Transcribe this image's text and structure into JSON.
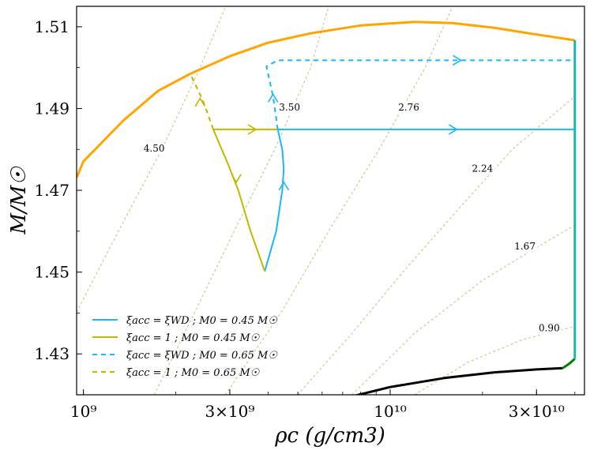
{
  "chart_data": {
    "type": "line",
    "xscale": "log",
    "xlim": [
      950000000,
      43000000000
    ],
    "ylim": [
      1.42,
      1.515
    ],
    "xlabel": "ρc (g/cm3)",
    "ylabel": "M/M☉",
    "x_ticks": [
      {
        "value": 1000000000,
        "label": "10⁹"
      },
      {
        "value": 3000000000,
        "label": "3×10⁹"
      },
      {
        "value": 10000000000,
        "label": "10¹⁰"
      },
      {
        "value": 30000000000,
        "label": "3×10¹⁰"
      }
    ],
    "y_ticks": [
      {
        "value": 1.43,
        "label": "1.43"
      },
      {
        "value": 1.45,
        "label": "1.45"
      },
      {
        "value": 1.47,
        "label": "1.47"
      },
      {
        "value": 1.49,
        "label": "1.49"
      },
      {
        "value": 1.51,
        "label": "1.51"
      }
    ],
    "series": [
      {
        "name": "upper boundary",
        "color": "#FFA500",
        "width": 3,
        "dash": "",
        "points": [
          [
            950000000,
            1.4731
          ],
          [
            1000000000,
            1.4771
          ],
          [
            1350000000,
            1.4871
          ],
          [
            1750000000,
            1.4943
          ],
          [
            2230000000,
            1.4985
          ],
          [
            3000000000,
            1.5028
          ],
          [
            4000000000,
            1.5061
          ],
          [
            5500000000,
            1.5084
          ],
          [
            8000000000,
            1.5103
          ],
          [
            12000000000,
            1.5112
          ],
          [
            16000000000,
            1.5109
          ],
          [
            22000000000,
            1.5097
          ],
          [
            30000000000,
            1.5081
          ],
          [
            40000000000,
            1.5067
          ]
        ]
      },
      {
        "name": "lower boundary",
        "color": "#000000",
        "width": 3,
        "dash": "",
        "points": [
          [
            7500000000,
            1.4196
          ],
          [
            10000000000,
            1.4219
          ],
          [
            15000000000,
            1.4241
          ],
          [
            22000000000,
            1.4255
          ],
          [
            30000000000,
            1.4262
          ],
          [
            36500000000,
            1.4265
          ]
        ]
      },
      {
        "name": "green segment",
        "color": "#008000",
        "width": 3,
        "dash": "",
        "points": [
          [
            36500000000,
            1.4265
          ],
          [
            38500000000,
            1.4277
          ],
          [
            40000000000,
            1.4288
          ]
        ]
      },
      {
        "name": "vertical edge",
        "color": "#20B2AA",
        "width": 3,
        "dash": "",
        "points": [
          [
            40000000000,
            1.4288
          ],
          [
            40000000000,
            1.5067
          ]
        ]
      },
      {
        "name": "ξacc = ξWD ; M0 = 0.45 M☉",
        "color": "#1EB6F0",
        "width": 2,
        "dash": "",
        "points": [
          [
            3900000000,
            1.4502
          ],
          [
            4250000000,
            1.46
          ],
          [
            4450000000,
            1.47
          ],
          [
            4500000000,
            1.4752
          ],
          [
            4450000000,
            1.48
          ],
          [
            4300000000,
            1.4849
          ],
          [
            40000000000,
            1.4849
          ]
        ]
      },
      {
        "name": "ξacc = 1 ; M0 = 0.45 M☉",
        "color": "#BDB800",
        "width": 2,
        "dash": "",
        "points": [
          [
            3900000000,
            1.4502
          ],
          [
            3500000000,
            1.4602
          ],
          [
            3200000000,
            1.47
          ],
          [
            2950000000,
            1.4767
          ],
          [
            2650000000,
            1.4849
          ],
          [
            4300000000,
            1.4849
          ]
        ]
      },
      {
        "name": "ξacc = ξWD ; M0 = 0.65 M☉",
        "color": "#1EB6F0",
        "width": 2,
        "dash": "6,5",
        "points": [
          [
            4300000000,
            1.4849
          ],
          [
            4150000000,
            1.493
          ],
          [
            3950000000,
            1.5003
          ],
          [
            4300000000,
            1.5018
          ],
          [
            40000000000,
            1.5018
          ]
        ]
      },
      {
        "name": "ξacc = 1 ; M0 = 0.65 M☉",
        "color": "#BDB800",
        "width": 2,
        "dash": "6,5",
        "points": [
          [
            2650000000,
            1.4849
          ],
          [
            2450000000,
            1.492
          ],
          [
            2230000000,
            1.4985
          ]
        ]
      }
    ],
    "arrows": [
      {
        "series": 4,
        "x": 4500000000,
        "y": 1.472,
        "dir": "up"
      },
      {
        "series": 4,
        "x": 16500000000,
        "y": 1.4849,
        "dir": "right"
      },
      {
        "series": 5,
        "x": 3150000000,
        "y": 1.472,
        "dir": "down"
      },
      {
        "series": 5,
        "x": 3650000000,
        "y": 1.4849,
        "dir": "right"
      },
      {
        "series": 6,
        "x": 4150000000,
        "y": 1.4935,
        "dir": "up"
      },
      {
        "series": 6,
        "x": 17000000000,
        "y": 1.5018,
        "dir": "right"
      },
      {
        "series": 7,
        "x": 2400000000,
        "y": 1.4925,
        "dir": "up"
      }
    ],
    "contours": [
      {
        "label": "4.50",
        "label_at": [
          1700000000,
          1.4795
        ],
        "points": [
          [
            950000000,
            1.4402
          ],
          [
            1300000000,
            1.46
          ],
          [
            1800000000,
            1.48
          ],
          [
            2400000000,
            1.5
          ],
          [
            3100000000,
            1.52
          ]
        ]
      },
      {
        "label": "3.50",
        "label_at": [
          4700000000,
          1.4895
        ],
        "points": [
          [
            1700000000,
            1.42
          ],
          [
            2300000000,
            1.44
          ],
          [
            3100000000,
            1.46
          ],
          [
            4200000000,
            1.48
          ],
          [
            5500000000,
            1.5
          ],
          [
            6600000000,
            1.52
          ]
        ]
      },
      {
        "label": "2.76",
        "label_at": [
          11500000000,
          1.4895
        ],
        "points": [
          [
            2900000000,
            1.42
          ],
          [
            4400000000,
            1.44
          ],
          [
            6300000000,
            1.46
          ],
          [
            9200000000,
            1.48
          ],
          [
            13000000000,
            1.5
          ],
          [
            16000000000,
            1.515
          ]
        ]
      },
      {
        "label": "2.24",
        "label_at": [
          20000000000,
          1.4745
        ],
        "points": [
          [
            5000000000,
            1.42
          ],
          [
            7500000000,
            1.435
          ],
          [
            11000000000,
            1.45
          ],
          [
            16500000000,
            1.465
          ],
          [
            25000000000,
            1.48
          ],
          [
            40000000000,
            1.493
          ]
        ]
      },
      {
        "label": "1.67",
        "label_at": [
          27500000000,
          1.4555
        ],
        "points": [
          [
            7500000000,
            1.42
          ],
          [
            12000000000,
            1.435
          ],
          [
            20000000000,
            1.448
          ],
          [
            30000000000,
            1.456
          ],
          [
            40000000000,
            1.4615
          ]
        ]
      },
      {
        "label": "0.90",
        "label_at": [
          33000000000,
          1.4355
        ],
        "points": [
          [
            12000000000,
            1.42
          ],
          [
            18000000000,
            1.428
          ],
          [
            27000000000,
            1.4335
          ],
          [
            40000000000,
            1.4367
          ]
        ]
      }
    ],
    "legend": {
      "position": "lower-left",
      "entries": [
        {
          "label": "ξacc = ξWD ; M0 = 0.45 M☉",
          "color": "#1EB6F0",
          "dash": ""
        },
        {
          "label": "ξacc = 1 ; M0 = 0.45 M☉",
          "color": "#BDB800",
          "dash": ""
        },
        {
          "label": "ξacc = ξWD ; M0 = 0.65 M☉",
          "color": "#1EB6F0",
          "dash": "6,5"
        },
        {
          "label": "ξacc = 1 ; M0 = 0.65 M☉",
          "color": "#BDB800",
          "dash": "6,5"
        }
      ]
    },
    "contour_color": "#D2B48C"
  }
}
